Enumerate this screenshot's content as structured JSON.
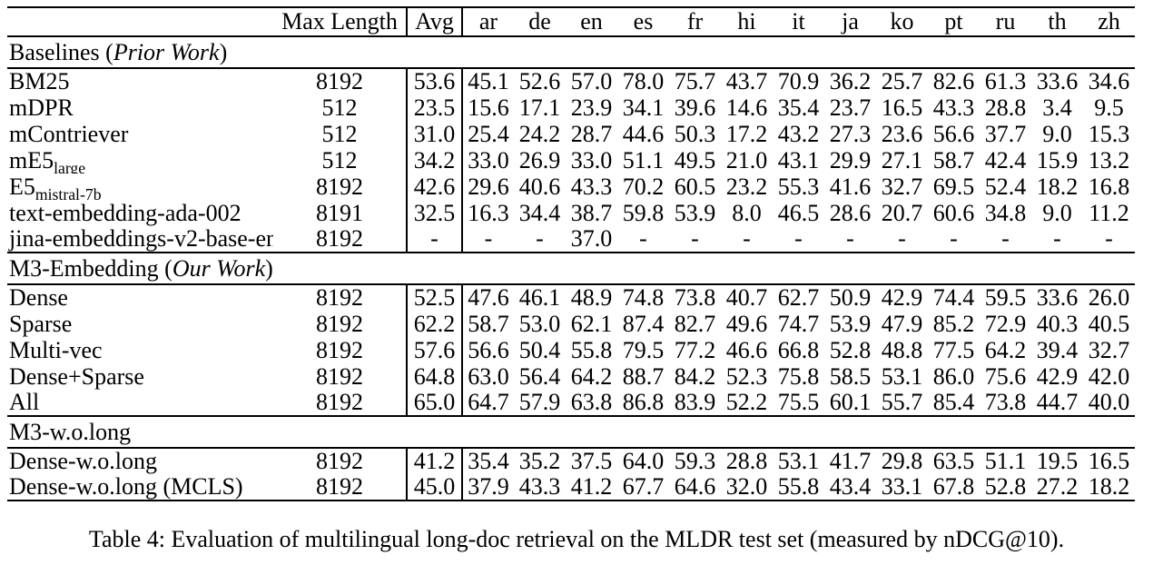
{
  "table": {
    "header": {
      "row_label": "",
      "max_length": "Max Length",
      "avg": "Avg",
      "languages": [
        "ar",
        "de",
        "en",
        "es",
        "fr",
        "hi",
        "it",
        "ja",
        "ko",
        "pt",
        "ru",
        "th",
        "zh"
      ]
    },
    "sections": [
      {
        "title_prefix": "Baselines (",
        "title_italic": "Prior Work",
        "title_suffix": ")",
        "rows": [
          {
            "label": "BM25",
            "max_length": "8192",
            "avg": "53.6",
            "values": [
              "45.1",
              "52.6",
              "57.0",
              "78.0",
              "75.7",
              "43.7",
              "70.9",
              "36.2",
              "25.7",
              "82.6",
              "61.3",
              "33.6",
              "34.6"
            ]
          },
          {
            "label": "mDPR",
            "max_length": "512",
            "avg": "23.5",
            "values": [
              "15.6",
              "17.1",
              "23.9",
              "34.1",
              "39.6",
              "14.6",
              "35.4",
              "23.7",
              "16.5",
              "43.3",
              "28.8",
              "3.4",
              "9.5"
            ]
          },
          {
            "label": "mContriever",
            "max_length": "512",
            "avg": "31.0",
            "values": [
              "25.4",
              "24.2",
              "28.7",
              "44.6",
              "50.3",
              "17.2",
              "43.2",
              "27.3",
              "23.6",
              "56.6",
              "37.7",
              "9.0",
              "15.3"
            ]
          },
          {
            "label": "mE5",
            "label_sub": "large",
            "max_length": "512",
            "avg": "34.2",
            "values": [
              "33.0",
              "26.9",
              "33.0",
              "51.1",
              "49.5",
              "21.0",
              "43.1",
              "29.9",
              "27.1",
              "58.7",
              "42.4",
              "15.9",
              "13.2"
            ]
          },
          {
            "label": "E5",
            "label_sub": "mistral-7b",
            "max_length": "8192",
            "avg": "42.6",
            "values": [
              "29.6",
              "40.6",
              "43.3",
              "70.2",
              "60.5",
              "23.2",
              "55.3",
              "41.6",
              "32.7",
              "69.5",
              "52.4",
              "18.2",
              "16.8"
            ]
          },
          {
            "label": "text-embedding-ada-002",
            "max_length": "8191",
            "avg": "32.5",
            "values": [
              "16.3",
              "34.4",
              "38.7",
              "59.8",
              "53.9",
              "8.0",
              "46.5",
              "28.6",
              "20.7",
              "60.6",
              "34.8",
              "9.0",
              "11.2"
            ]
          },
          {
            "label": "jina-embeddings-v2-base-en",
            "max_length": "8192",
            "avg": "-",
            "values": [
              "-",
              "-",
              "37.0",
              "-",
              "-",
              "-",
              "-",
              "-",
              "-",
              "-",
              "-",
              "-",
              "-"
            ]
          }
        ]
      },
      {
        "title_prefix": "M3-Embedding (",
        "title_italic": "Our Work",
        "title_suffix": ")",
        "rows": [
          {
            "label": "Dense",
            "max_length": "8192",
            "avg": "52.5",
            "values": [
              "47.6",
              "46.1",
              "48.9",
              "74.8",
              "73.8",
              "40.7",
              "62.7",
              "50.9",
              "42.9",
              "74.4",
              "59.5",
              "33.6",
              "26.0"
            ]
          },
          {
            "label": "Sparse",
            "max_length": "8192",
            "avg": "62.2",
            "values": [
              "58.7",
              "53.0",
              "62.1",
              "87.4",
              "82.7",
              "49.6",
              "74.7",
              "53.9",
              "47.9",
              "85.2",
              "72.9",
              "40.3",
              "40.5"
            ]
          },
          {
            "label": "Multi-vec",
            "max_length": "8192",
            "avg": "57.6",
            "values": [
              "56.6",
              "50.4",
              "55.8",
              "79.5",
              "77.2",
              "46.6",
              "66.8",
              "52.8",
              "48.8",
              "77.5",
              "64.2",
              "39.4",
              "32.7"
            ]
          },
          {
            "label": "Dense+Sparse",
            "max_length": "8192",
            "avg": "64.8",
            "values": [
              "63.0",
              "56.4",
              "64.2",
              "88.7",
              "84.2",
              "52.3",
              "75.8",
              "58.5",
              "53.1",
              "86.0",
              "75.6",
              "42.9",
              "42.0"
            ],
            "bold": [
              2,
              3,
              4,
              5,
              6,
              9,
              10,
              12
            ]
          },
          {
            "label": "All",
            "max_length": "8192",
            "avg": "65.0",
            "avg_bold": true,
            "values": [
              "64.7",
              "57.9",
              "63.8",
              "86.8",
              "83.9",
              "52.2",
              "75.5",
              "60.1",
              "55.7",
              "85.4",
              "73.8",
              "44.7",
              "40.0"
            ],
            "bold": [
              0,
              1,
              7,
              8,
              11
            ]
          }
        ]
      },
      {
        "title_prefix": "M3-w.o.long",
        "title_italic": "",
        "title_suffix": "",
        "rows": [
          {
            "label": "Dense-w.o.long",
            "max_length": "8192",
            "avg": "41.2",
            "values": [
              "35.4",
              "35.2",
              "37.5",
              "64.0",
              "59.3",
              "28.8",
              "53.1",
              "41.7",
              "29.8",
              "63.5",
              "51.1",
              "19.5",
              "16.5"
            ]
          },
          {
            "label": "Dense-w.o.long (MCLS)",
            "max_length": "8192",
            "avg": "45.0",
            "values": [
              "37.9",
              "43.3",
              "41.2",
              "67.7",
              "64.6",
              "32.0",
              "55.8",
              "43.4",
              "33.1",
              "67.8",
              "52.8",
              "27.2",
              "18.2"
            ]
          }
        ]
      }
    ]
  },
  "caption": "Table 4: Evaluation of multilingual long-doc retrieval on the MLDR test set (measured by nDCG@10)."
}
